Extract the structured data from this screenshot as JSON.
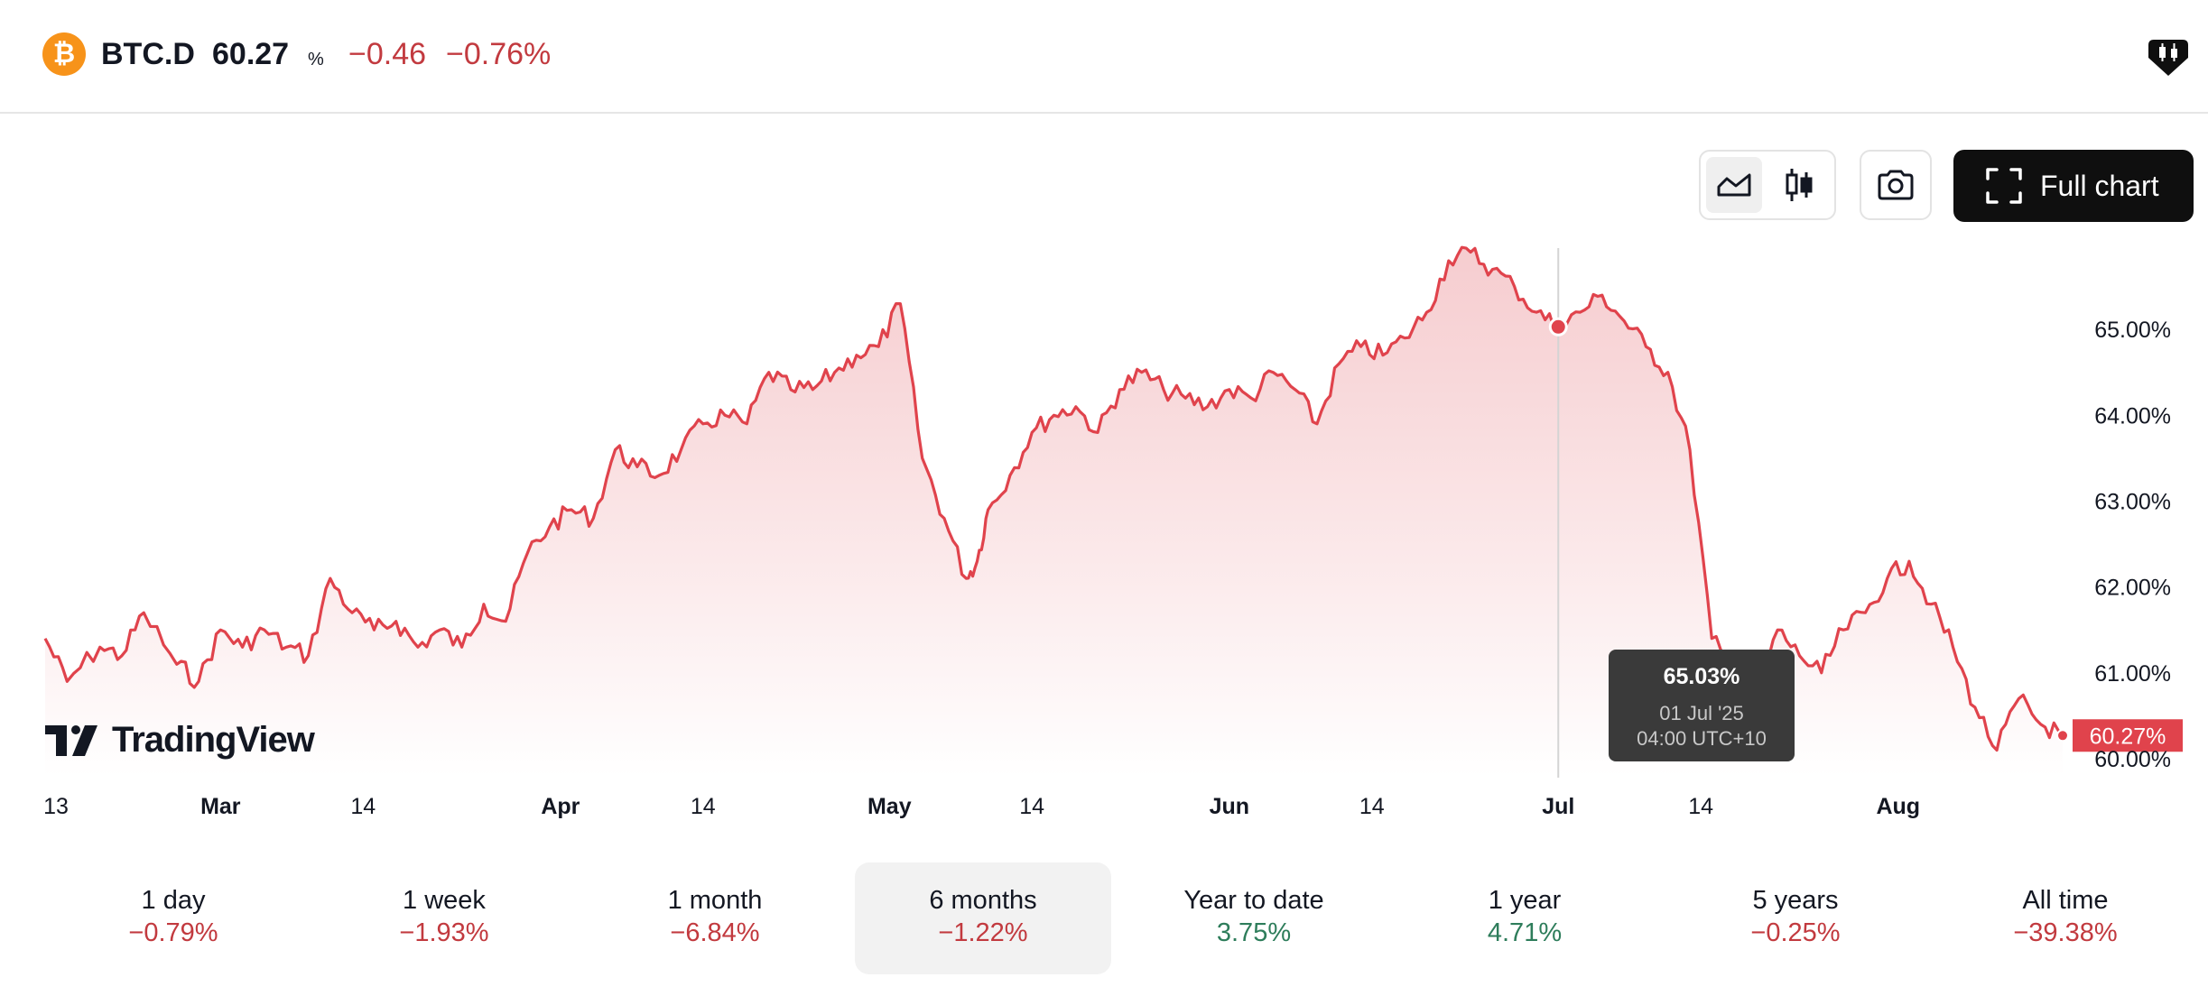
{
  "header": {
    "coin_icon": "bitcoin-icon",
    "coin_glyph": "₿",
    "symbol": "BTC.D",
    "price": "60.27",
    "price_unit": "%",
    "change_abs": "−0.46",
    "change_pct": "−0.76%"
  },
  "toolbar": {
    "line_icon": "area-chart-icon",
    "candle_icon": "candlestick-icon",
    "camera_icon": "camera-icon",
    "full_chart_label": "Full chart"
  },
  "tooltip": {
    "value": "65.03%",
    "date": "01 Jul '25",
    "time": "04:00 UTC+10"
  },
  "watermark": "TradingView",
  "chart_data": {
    "type": "area",
    "series": [
      {
        "x": [
          "2025-02-13",
          "2025-02-15",
          "2025-02-18",
          "2025-02-20",
          "2025-02-22",
          "2025-02-25",
          "2025-02-27",
          "2025-03-01",
          "2025-03-03",
          "2025-03-05",
          "2025-03-07",
          "2025-03-09",
          "2025-03-11",
          "2025-03-13",
          "2025-03-15",
          "2025-03-17",
          "2025-03-19",
          "2025-03-21",
          "2025-03-23",
          "2025-03-25",
          "2025-03-27",
          "2025-03-29",
          "2025-03-31",
          "2025-04-02",
          "2025-04-04",
          "2025-04-06",
          "2025-04-08",
          "2025-04-10",
          "2025-04-12",
          "2025-04-14",
          "2025-04-16",
          "2025-04-18",
          "2025-04-20",
          "2025-04-22",
          "2025-04-24",
          "2025-04-26",
          "2025-04-28",
          "2025-04-30",
          "2025-05-02",
          "2025-05-04",
          "2025-05-06",
          "2025-05-08",
          "2025-05-09",
          "2025-05-10",
          "2025-05-12",
          "2025-05-14",
          "2025-05-16",
          "2025-05-18",
          "2025-05-20",
          "2025-05-22",
          "2025-05-24",
          "2025-05-26",
          "2025-05-28",
          "2025-05-30",
          "2025-06-01",
          "2025-06-03",
          "2025-06-05",
          "2025-06-07",
          "2025-06-09",
          "2025-06-11",
          "2025-06-13",
          "2025-06-15",
          "2025-06-17",
          "2025-06-19",
          "2025-06-21",
          "2025-06-23",
          "2025-06-25",
          "2025-06-27",
          "2025-06-29",
          "2025-07-01",
          "2025-07-03",
          "2025-07-05",
          "2025-07-07",
          "2025-07-09",
          "2025-07-11",
          "2025-07-13",
          "2025-07-15",
          "2025-07-17",
          "2025-07-19",
          "2025-07-21",
          "2025-07-23",
          "2025-07-25",
          "2025-07-27",
          "2025-07-29",
          "2025-07-31",
          "2025-08-02",
          "2025-08-04",
          "2025-08-06",
          "2025-08-08",
          "2025-08-10",
          "2025-08-12",
          "2025-08-14",
          "2025-08-16"
        ],
        "y": [
          61.4,
          60.9,
          61.3,
          61.2,
          61.7,
          61.1,
          60.9,
          61.5,
          61.3,
          61.5,
          61.3,
          61.2,
          62.1,
          61.7,
          61.5,
          61.6,
          61.3,
          61.5,
          61.3,
          61.8,
          61.6,
          62.4,
          62.7,
          62.9,
          62.8,
          63.6,
          63.4,
          63.3,
          63.6,
          63.9,
          64.0,
          63.9,
          64.5,
          64.3,
          64.3,
          64.5,
          64.7,
          64.8,
          65.3,
          63.5,
          62.8,
          62.1,
          62.3,
          62.9,
          63.3,
          63.8,
          64.0,
          64.1,
          63.8,
          64.3,
          64.5,
          64.3,
          64.2,
          64.1,
          64.3,
          64.2,
          64.5,
          64.3,
          63.9,
          64.6,
          64.8,
          64.7,
          64.9,
          65.2,
          65.8,
          65.9,
          65.7,
          65.5,
          65.2,
          65.03,
          65.2,
          65.4,
          65.1,
          64.8,
          64.5,
          63.6,
          61.4,
          61.0,
          60.7,
          61.5,
          61.2,
          61.0,
          61.5,
          61.7,
          62.1,
          62.3,
          61.8,
          61.3,
          60.6,
          60.1,
          60.7,
          60.4,
          60.27
        ]
      }
    ],
    "x_ticks": [
      "13",
      "Mar",
      "14",
      "Apr",
      "14",
      "May",
      "14",
      "Jun",
      "14",
      "Jul",
      "14",
      "Aug"
    ],
    "y_ticks": [
      "60.00%",
      "61.00%",
      "62.00%",
      "63.00%",
      "64.00%",
      "65.00%"
    ],
    "ylim": [
      59.8,
      66.0
    ],
    "last_value_label": "60.27%",
    "crosshair_x": "2025-07-01",
    "colors": {
      "line": "#e0434c",
      "fill_top": "#f5c7ca",
      "fill_bottom": "#ffffff",
      "last_badge": "#e0434c"
    },
    "grid": false
  },
  "periods": [
    {
      "label": "1 day",
      "value": "−0.79%",
      "trend": "neg",
      "active": false
    },
    {
      "label": "1 week",
      "value": "−1.93%",
      "trend": "neg",
      "active": false
    },
    {
      "label": "1 month",
      "value": "−6.84%",
      "trend": "neg",
      "active": false
    },
    {
      "label": "6 months",
      "value": "−1.22%",
      "trend": "neg",
      "active": true
    },
    {
      "label": "Year to date",
      "value": "3.75%",
      "trend": "pos",
      "active": false
    },
    {
      "label": "1 year",
      "value": "4.71%",
      "trend": "pos",
      "active": false
    },
    {
      "label": "5 years",
      "value": "−0.25%",
      "trend": "neg",
      "active": false
    },
    {
      "label": "All time",
      "value": "−39.38%",
      "trend": "neg",
      "active": false
    }
  ]
}
